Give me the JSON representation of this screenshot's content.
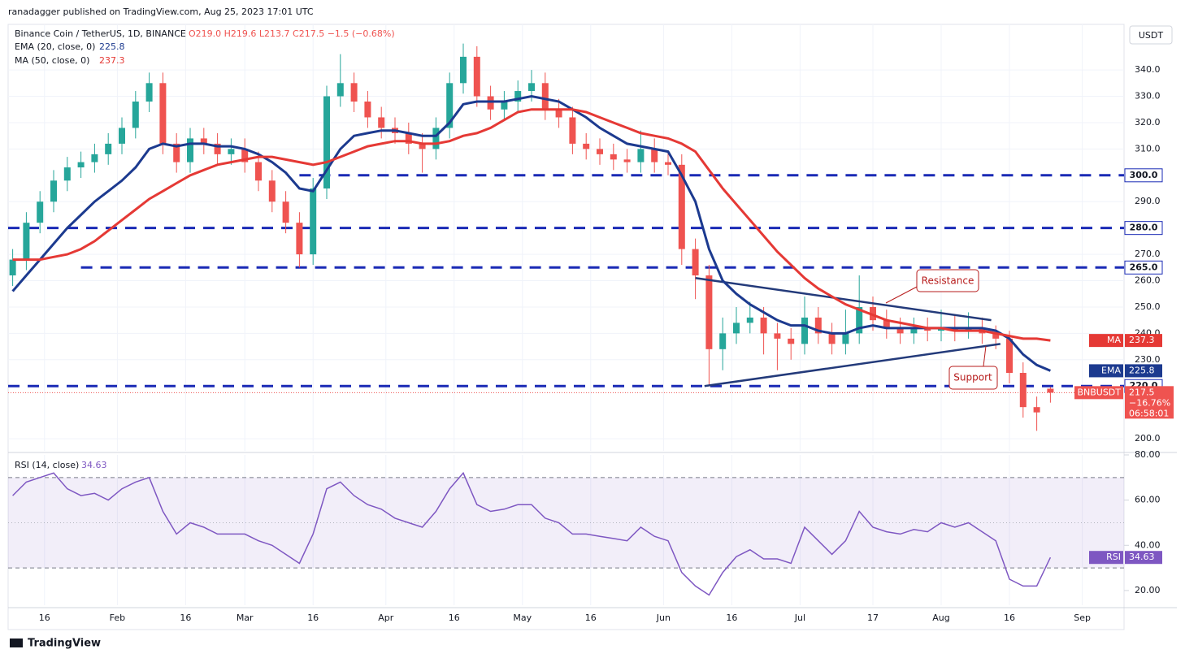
{
  "header": {
    "publisher": "ranadagger published on TradingView.com, Aug 25, 2023 17:01 UTC"
  },
  "footer": {
    "brand": "TradingView"
  },
  "chart_data": [
    {
      "type": "candlestick",
      "title": "Binance Coin / TetherUS, 1D, BINANCE",
      "ohlc_text": "O219.0 H219.6 L213.7 C217.5 −1.5 (−0.68%)",
      "currency": "USDT",
      "x": [
        "Jan 9",
        "Jan 12",
        "Jan 15",
        "Jan 18",
        "Jan 21",
        "Jan 24",
        "Jan 27",
        "Jan 30",
        "Feb 2",
        "Feb 5",
        "Feb 8",
        "Feb 11",
        "Feb 14",
        "Feb 17",
        "Feb 20",
        "Feb 23",
        "Feb 26",
        "Mar 1",
        "Mar 4",
        "Mar 7",
        "Mar 10",
        "Mar 13",
        "Mar 16",
        "Mar 19",
        "Mar 22",
        "Mar 25",
        "Mar 28",
        "Mar 31",
        "Apr 3",
        "Apr 6",
        "Apr 9",
        "Apr 12",
        "Apr 15",
        "Apr 18",
        "Apr 21",
        "Apr 24",
        "Apr 27",
        "Apr 30",
        "May 3",
        "May 6",
        "May 9",
        "May 12",
        "May 15",
        "May 18",
        "May 21",
        "May 24",
        "May 27",
        "May 30",
        "Jun 2",
        "Jun 5",
        "Jun 8",
        "Jun 11",
        "Jun 14",
        "Jun 17",
        "Jun 20",
        "Jun 23",
        "Jun 26",
        "Jun 29",
        "Jul 2",
        "Jul 5",
        "Jul 8",
        "Jul 11",
        "Jul 14",
        "Jul 17",
        "Jul 20",
        "Jul 23",
        "Jul 26",
        "Jul 29",
        "Aug 1",
        "Aug 4",
        "Aug 7",
        "Aug 10",
        "Aug 13",
        "Aug 16",
        "Aug 19",
        "Aug 22",
        "Aug 25"
      ],
      "open": [
        262,
        268,
        282,
        290,
        298,
        303,
        305,
        308,
        312,
        318,
        328,
        335,
        312,
        305,
        314,
        312,
        308,
        310,
        305,
        298,
        290,
        282,
        270,
        295,
        330,
        335,
        328,
        322,
        318,
        316,
        312,
        310,
        318,
        335,
        345,
        330,
        325,
        328,
        332,
        335,
        325,
        322,
        312,
        310,
        308,
        306,
        305,
        310,
        305,
        304,
        272,
        262,
        234,
        240,
        244,
        246,
        240,
        238,
        236,
        246,
        240,
        236,
        240,
        250,
        245,
        242,
        240,
        242,
        241,
        242,
        241,
        242,
        240,
        238,
        225,
        212,
        219
      ],
      "high": [
        272,
        286,
        294,
        302,
        307,
        309,
        312,
        316,
        322,
        332,
        339,
        339,
        316,
        318,
        318,
        316,
        314,
        314,
        309,
        302,
        294,
        286,
        299,
        334,
        346,
        339,
        332,
        326,
        322,
        320,
        316,
        322,
        339,
        350,
        349,
        334,
        332,
        336,
        340,
        339,
        329,
        326,
        316,
        314,
        312,
        310,
        317,
        314,
        309,
        308,
        276,
        266,
        246,
        250,
        252,
        250,
        244,
        242,
        254,
        250,
        244,
        249,
        262,
        254,
        249,
        246,
        246,
        246,
        249,
        247,
        248,
        246,
        243,
        241,
        229,
        216,
        219.6
      ],
      "low": [
        258,
        264,
        278,
        286,
        294,
        299,
        301,
        304,
        308,
        314,
        324,
        308,
        301,
        301,
        308,
        304,
        304,
        301,
        294,
        286,
        278,
        265,
        266,
        291,
        326,
        324,
        318,
        314,
        312,
        308,
        301,
        306,
        314,
        331,
        326,
        321,
        321,
        324,
        328,
        321,
        318,
        308,
        306,
        304,
        302,
        301,
        301,
        301,
        300,
        266,
        253,
        220,
        226,
        236,
        240,
        232,
        226,
        230,
        232,
        236,
        232,
        232,
        236,
        241,
        238,
        236,
        236,
        237,
        237,
        237,
        238,
        236,
        234,
        221,
        208,
        203,
        213.7
      ],
      "close": [
        268,
        282,
        290,
        298,
        303,
        305,
        308,
        312,
        318,
        328,
        335,
        312,
        305,
        314,
        312,
        308,
        310,
        305,
        298,
        290,
        282,
        270,
        295,
        330,
        335,
        328,
        322,
        318,
        316,
        312,
        310,
        318,
        335,
        345,
        330,
        325,
        328,
        332,
        335,
        325,
        322,
        312,
        310,
        308,
        306,
        305,
        310,
        305,
        304,
        272,
        262,
        234,
        240,
        244,
        246,
        240,
        238,
        236,
        246,
        240,
        236,
        240,
        250,
        245,
        242,
        240,
        242,
        241,
        242,
        241,
        242,
        240,
        238,
        225,
        212,
        210,
        217.5
      ],
      "up_color": "#26a69a",
      "down_color": "#ef5350",
      "series": [
        {
          "name": "EMA (20, close, 0)",
          "tag": "EMA",
          "color": "#1c3a8f",
          "values": [
            256,
            262,
            268,
            274,
            280,
            285,
            290,
            294,
            298,
            303,
            310,
            312,
            311,
            312,
            312,
            311,
            311,
            310,
            308,
            305,
            301,
            295,
            294,
            302,
            310,
            315,
            316,
            317,
            317,
            316,
            315,
            315,
            320,
            327,
            328,
            328,
            328,
            329,
            330,
            329,
            328,
            325,
            322,
            318,
            315,
            312,
            311,
            310,
            309,
            300,
            290,
            272,
            260,
            255,
            251,
            248,
            245,
            243,
            243,
            241,
            240,
            240,
            242,
            243,
            242,
            242,
            242,
            242,
            242,
            242,
            242,
            242,
            241,
            238,
            232,
            228,
            225.8
          ]
        },
        {
          "name": "MA (50, close, 0)",
          "tag": "MA",
          "color": "#e53935",
          "values": [
            268,
            268,
            268,
            269,
            270,
            272,
            275,
            279,
            283,
            287,
            291,
            294,
            297,
            300,
            302,
            304,
            305,
            306,
            307,
            307,
            306,
            305,
            304,
            305,
            307,
            309,
            311,
            312,
            313,
            313,
            312,
            312,
            313,
            315,
            316,
            318,
            321,
            324,
            325,
            325,
            325,
            325,
            324,
            322,
            320,
            318,
            316,
            315,
            314,
            312,
            309,
            302,
            295,
            289,
            283,
            277,
            271,
            266,
            261,
            257,
            254,
            251,
            249,
            247,
            245,
            244,
            243,
            242,
            242,
            241,
            241,
            241,
            240,
            239,
            238,
            238,
            237.3
          ]
        }
      ],
      "last_tag": "BNBUSDT",
      "change_label": "−16.76%",
      "countdown": "06:58:01",
      "ylim": [
        195.4,
        357.3
      ],
      "yticks": [
        {
          "value": 200,
          "label": "200.0"
        },
        {
          "value": 230,
          "label": "230.0"
        },
        {
          "value": 240,
          "label": "240.0"
        },
        {
          "value": 250,
          "label": "250.0"
        },
        {
          "value": 260,
          "label": "260.0"
        },
        {
          "value": 270,
          "label": "270.0"
        },
        {
          "value": 290,
          "label": "290.0"
        },
        {
          "value": 310,
          "label": "310.0"
        },
        {
          "value": 320,
          "label": "320.0"
        },
        {
          "value": 330,
          "label": "330.0"
        },
        {
          "value": 340,
          "label": "340.0"
        }
      ],
      "xlim": [
        "Jan 8",
        "Sep 10"
      ],
      "xticks": [
        {
          "value": "Jan 16",
          "label": "16"
        },
        {
          "value": "Feb 1",
          "label": "Feb"
        },
        {
          "value": "Feb 16",
          "label": "16"
        },
        {
          "value": "Mar 1",
          "label": "Mar"
        },
        {
          "value": "Mar 16",
          "label": "16"
        },
        {
          "value": "Apr 1",
          "label": "Apr"
        },
        {
          "value": "Apr 16",
          "label": "16"
        },
        {
          "value": "May 1",
          "label": "May"
        },
        {
          "value": "May 16",
          "label": "16"
        },
        {
          "value": "Jun 1",
          "label": "Jun"
        },
        {
          "value": "Jun 16",
          "label": "16"
        },
        {
          "value": "Jul 1",
          "label": "Jul"
        },
        {
          "value": "Jul 17",
          "label": "17"
        },
        {
          "value": "Aug 1",
          "label": "Aug"
        },
        {
          "value": "Aug 16",
          "label": "16"
        },
        {
          "value": "Sep 1",
          "label": "Sep"
        }
      ],
      "levels": [
        {
          "start": "Mar 13",
          "value": 300,
          "label": "300.0"
        },
        {
          "start": "Jan 8",
          "value": 280,
          "label": "280.0"
        },
        {
          "start": "Jan 24",
          "value": 265,
          "label": "265.0"
        },
        {
          "start": "Jan 8",
          "value": 220,
          "label": "220.0"
        }
      ],
      "level_color": "#1a2ab5",
      "trendlines": [
        {
          "x": [
            "Jun 8",
            "Aug 12"
          ],
          "values": [
            261,
            245
          ]
        },
        {
          "x": [
            "Jun 10",
            "Aug 14"
          ],
          "values": [
            220,
            236
          ]
        }
      ],
      "trend_color": "#233a7a",
      "annotations": [
        {
          "text": "Resistance"
        },
        {
          "text": "Support"
        }
      ],
      "grid": true
    },
    {
      "type": "line",
      "name": "RSI (14, close)",
      "tag": "RSI",
      "color": "#7e57c2",
      "values": [
        62,
        68,
        70,
        72,
        65,
        62,
        63,
        60,
        65,
        68,
        70,
        55,
        45,
        50,
        48,
        45,
        45,
        45,
        42,
        40,
        36,
        32,
        45,
        65,
        68,
        62,
        58,
        56,
        52,
        50,
        48,
        55,
        65,
        72,
        58,
        55,
        56,
        58,
        58,
        52,
        50,
        45,
        45,
        44,
        43,
        42,
        48,
        44,
        42,
        28,
        22,
        18,
        28,
        35,
        38,
        34,
        34,
        32,
        48,
        42,
        36,
        42,
        55,
        48,
        46,
        45,
        47,
        46,
        50,
        48,
        50,
        46,
        42,
        25,
        22,
        22,
        34.63
      ],
      "ylim": [
        13.5,
        80
      ],
      "yticks": [
        {
          "value": 20,
          "label": "20.00"
        },
        {
          "value": 40,
          "label": "40.00"
        },
        {
          "value": 60,
          "label": "60.00"
        },
        {
          "value": 80,
          "label": "80.00"
        }
      ],
      "band": [
        30,
        70
      ],
      "midline": 50
    }
  ]
}
